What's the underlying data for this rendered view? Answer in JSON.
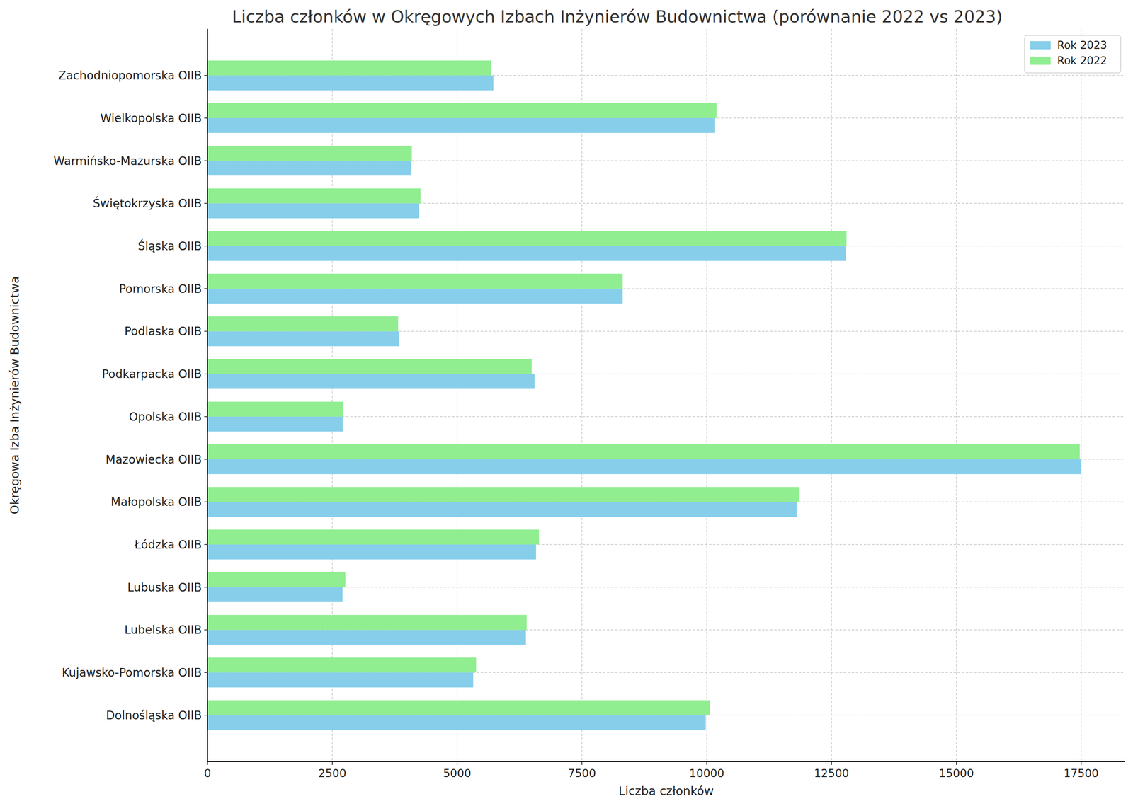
{
  "chart_data": {
    "type": "bar",
    "orientation": "horizontal",
    "title": "Liczba członków w Okręgowych Izbach Inżynierów Budownictwa (porównanie 2022 vs 2023)",
    "x_label": "Liczba członków",
    "y_label": "Okręgowa Izba Inżynierów Budownictwa",
    "categories": [
      "Dolnośląska OIIB",
      "Kujawsko-Pomorska OIIB",
      "Lubelska OIIB",
      "Lubuska OIIB",
      "Łódzka OIIB",
      "Małopolska OIIB",
      "Mazowiecka OIIB",
      "Opolska OIIB",
      "Podkarpacka OIIB",
      "Podlaska OIIB",
      "Pomorska OIIB",
      "Śląska OIIB",
      "Świętokrzyska OIIB",
      "Warmińsko-Mazurska OIIB",
      "Wielkopolska OIIB",
      "Zachodniopomorska OIIB"
    ],
    "series": [
      {
        "name": "Rok 2023",
        "color": "#87ceeb",
        "values": [
          9980,
          5322,
          6378,
          2705,
          6581,
          11802,
          17500,
          2710,
          6552,
          3833,
          8316,
          12786,
          4238,
          4079,
          10168,
          5727
        ]
      },
      {
        "name": "Rok 2022",
        "color": "#90ee90",
        "values": [
          10066,
          5380,
          6393,
          2762,
          6639,
          11860,
          17472,
          2720,
          6494,
          3818,
          8316,
          12800,
          4267,
          4093,
          10197,
          5684
        ]
      }
    ],
    "xlim": [
      0,
      18375
    ],
    "xticks": [
      0,
      2500,
      5000,
      7500,
      10000,
      12500,
      15000,
      17500
    ],
    "grid": true,
    "legend": "upper right"
  }
}
